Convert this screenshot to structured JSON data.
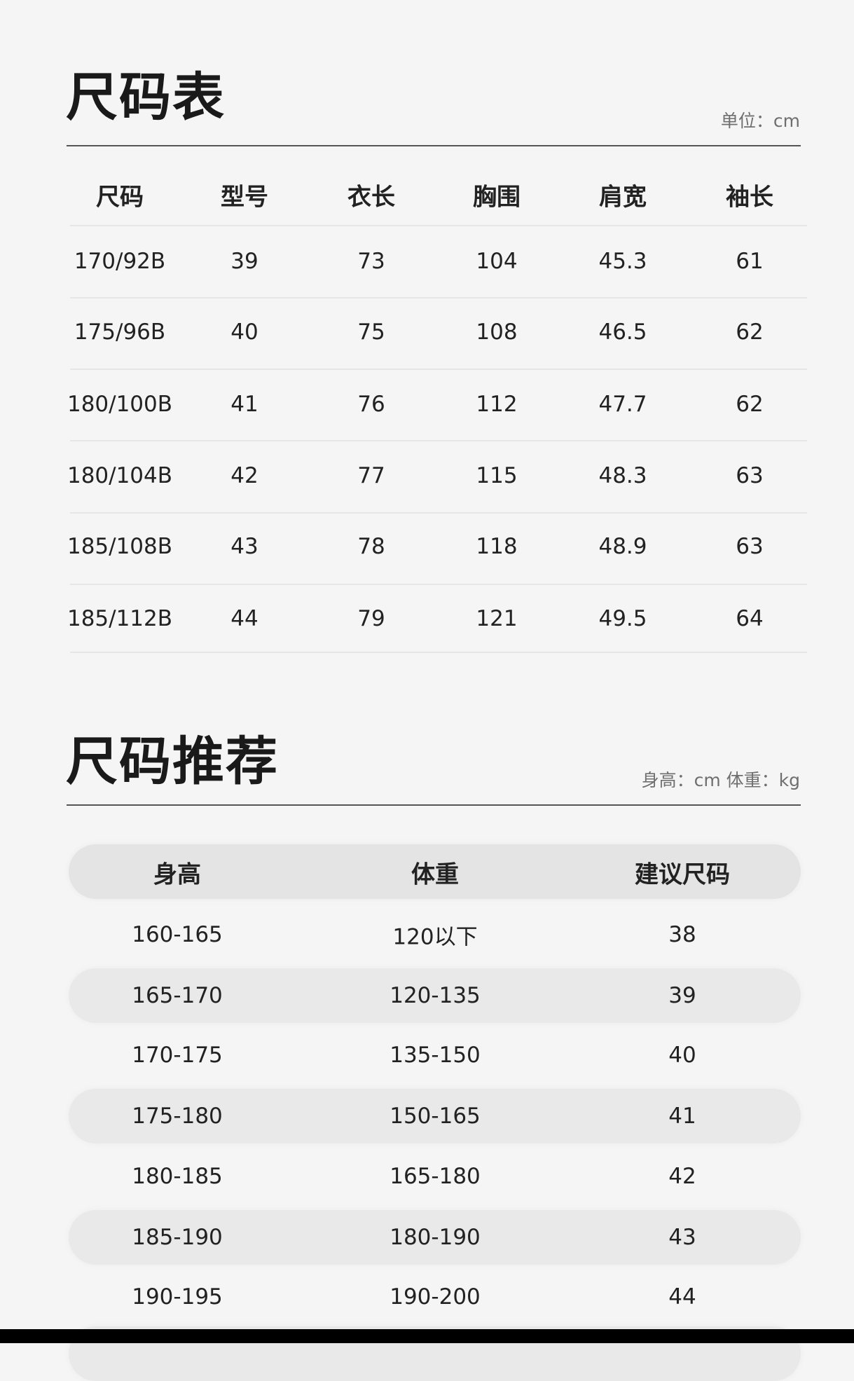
{
  "size_chart": {
    "title": "尺码表",
    "unit": "单位：cm",
    "headers": [
      "尺码",
      "型号",
      "衣长",
      "胸围",
      "肩宽",
      "袖长"
    ],
    "rows": [
      [
        "170/92B",
        "39",
        "73",
        "104",
        "45.3",
        "61"
      ],
      [
        "175/96B",
        "40",
        "75",
        "108",
        "46.5",
        "62"
      ],
      [
        "180/100B",
        "41",
        "76",
        "112",
        "47.7",
        "62"
      ],
      [
        "180/104B",
        "42",
        "77",
        "115",
        "48.3",
        "63"
      ],
      [
        "185/108B",
        "43",
        "78",
        "118",
        "48.9",
        "63"
      ],
      [
        "185/112B",
        "44",
        "79",
        "121",
        "49.5",
        "64"
      ]
    ]
  },
  "recommendation": {
    "title": "尺码推荐",
    "unit": "身高：cm  体重：kg",
    "headers": [
      "身高",
      "体重",
      "建议尺码"
    ],
    "rows": [
      [
        "160-165",
        "120以下",
        "38"
      ],
      [
        "165-170",
        "120-135",
        "39"
      ],
      [
        "170-175",
        "135-150",
        "40"
      ],
      [
        "175-180",
        "150-165",
        "41"
      ],
      [
        "180-185",
        "165-180",
        "42"
      ],
      [
        "185-190",
        "180-190",
        "43"
      ],
      [
        "190-195",
        "190-200",
        "44"
      ]
    ]
  },
  "colors": {
    "background": "#f5f5f5",
    "stripe": "#e9e9e9",
    "text": "#1e1e1e"
  }
}
